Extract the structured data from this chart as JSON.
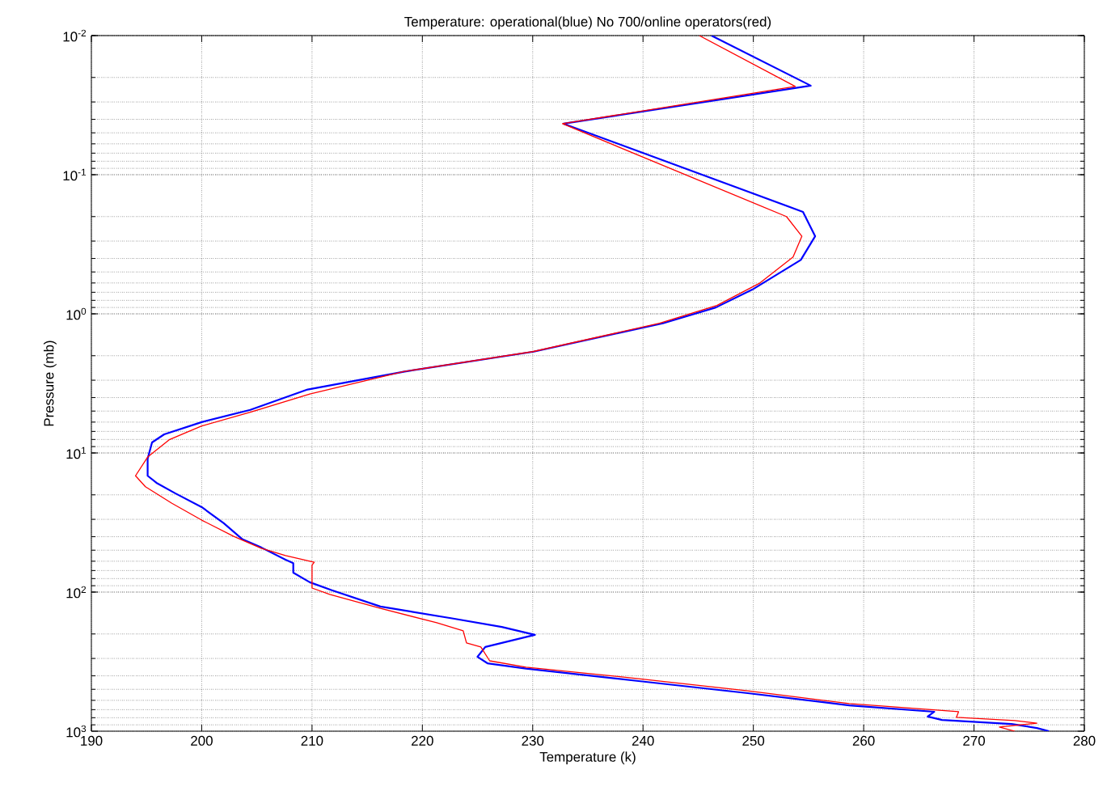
{
  "chart_data": {
    "type": "line",
    "title": "Temperature: operational(blue) No 700/online operators(red)",
    "xlabel": "Temperature (k)",
    "ylabel": "Pressure (mb)",
    "xlim": [
      190,
      280
    ],
    "xticks": [
      190,
      200,
      210,
      220,
      230,
      240,
      250,
      260,
      270,
      280
    ],
    "ylim": [
      1000,
      0.01
    ],
    "yticks": [
      {
        "value": 0.01,
        "label": "10$^{-2}$"
      },
      {
        "value": 0.1,
        "label": "10$^{-1}$"
      },
      {
        "value": 1,
        "label": "10$^{0}$"
      },
      {
        "value": 10,
        "label": "10$^{1}$"
      },
      {
        "value": 100,
        "label": "10$^{2}$"
      },
      {
        "value": 1000,
        "label": "10$^{3}$"
      }
    ],
    "log": "y",
    "grid": true,
    "series": [
      {
        "color": "#0000ff",
        "x": [
          246.2,
          255.2,
          232.8,
          254.5,
          255.6,
          254.3,
          249.9,
          246.6,
          241.8,
          230.1,
          218.4,
          209.6,
          204.4,
          200.0,
          196.6,
          195.5,
          195.1,
          195.1,
          195.9,
          197.6,
          200.0,
          202.0,
          203.7,
          205.4,
          207.6,
          208.3,
          208.3,
          209.8,
          211.8,
          216.2,
          222.8,
          227.2,
          230.2,
          225.7,
          225.0,
          225.9,
          229.4,
          239.6,
          249.5,
          258.7,
          266.4,
          265.8,
          267.1,
          273.4,
          275.7,
          276.8
        ],
        "values": [
          0.01,
          0.0229,
          0.043,
          0.185,
          0.277,
          0.41,
          0.67,
          0.9,
          1.17,
          1.87,
          2.6,
          3.5,
          4.9,
          6.0,
          7.35,
          8.4,
          11,
          14.6,
          16.4,
          19.5,
          24.5,
          32,
          41.8,
          47.8,
          58.5,
          62,
          72.5,
          85,
          97,
          127,
          155,
          178,
          203,
          248,
          292,
          325,
          355,
          436,
          533,
          652,
          725,
          785,
          830,
          888,
          949,
          1000
        ]
      },
      {
        "color": "#ff0000",
        "x": [
          245.1,
          253.8,
          232.7,
          253.0,
          254.4,
          253.6,
          250.6,
          246.7,
          241.5,
          230.0,
          218.3,
          209.8,
          204.4,
          200.0,
          197.1,
          195.1,
          194.0,
          194.9,
          197.3,
          200.0,
          202.9,
          205.4,
          207.6,
          210.2,
          210.0,
          210.0,
          211.6,
          216.2,
          221.3,
          223.7,
          224.0,
          225.3,
          226.1,
          229.4,
          239.6,
          249.5,
          258.7,
          268.6,
          268.4,
          273.7,
          275.7,
          272.3,
          273.7
        ],
        "values": [
          0.01,
          0.0232,
          0.043,
          0.2,
          0.277,
          0.39,
          0.6,
          0.87,
          1.17,
          1.87,
          2.6,
          3.77,
          5.1,
          6.4,
          8,
          10.7,
          14.6,
          17.5,
          23,
          30.4,
          39.8,
          48.5,
          54.7,
          61,
          64,
          93.5,
          104,
          131,
          166,
          190,
          232,
          248,
          312,
          347,
          419,
          513,
          634,
          725,
          796,
          840,
          875,
          933,
          1000
        ]
      }
    ]
  }
}
